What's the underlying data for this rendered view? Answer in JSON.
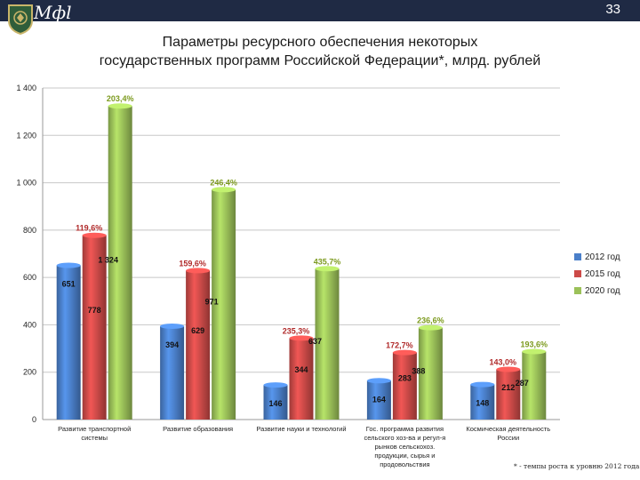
{
  "header": {
    "brand": "Мфl",
    "slide_number": "33",
    "accent": "#1f2a44"
  },
  "title_lines": [
    "Параметры ресурсного обеспечения некоторых",
    "государственных программ Российской Федерации*, млрд. рублей"
  ],
  "footnote": "* - темпы роста к уровню 2012 года",
  "chart_data": {
    "type": "bar",
    "title": "Параметры ресурсного обеспечения некоторых государственных программ Российской Федерации*, млрд. рублей",
    "ylim": [
      0,
      1400
    ],
    "y_ticks": [
      0,
      200,
      400,
      600,
      800,
      1000,
      1200,
      1400
    ],
    "y_tick_labels": [
      "0",
      "200",
      "400",
      "600",
      "800",
      "1 000",
      "1 200",
      "1 400"
    ],
    "grid": true,
    "legend_position": "right",
    "categories": [
      [
        "Развитие транспортной",
        "системы"
      ],
      [
        "Развитие образования"
      ],
      [
        "Развитие науки и технологий"
      ],
      [
        "Гос. программа развития",
        "сельского хоз-ва и регул-я",
        "рынков сельскохоз.",
        "продукции, сырья и",
        "продовольствия"
      ],
      [
        "Космическая деятельность",
        "России"
      ]
    ],
    "series": [
      {
        "name": "2012 год",
        "color": "#4a7fc9",
        "values": [
          651,
          394,
          146,
          164,
          148
        ],
        "labels": [
          "651",
          "394",
          "146",
          "164",
          "148"
        ]
      },
      {
        "name": "2015 год",
        "color": "#cc4a48",
        "values": [
          778,
          629,
          344,
          283,
          212
        ],
        "labels": [
          "778",
          "629",
          "344",
          "283",
          "212"
        ],
        "growth": [
          "119,6%",
          "159,6%",
          "235,3%",
          "172,7%",
          "143,0%"
        ],
        "growth_color": "#b02a2a"
      },
      {
        "name": "2020 год",
        "color": "#9bc159",
        "values": [
          1324,
          971,
          637,
          388,
          287
        ],
        "labels": [
          "1 324",
          "971",
          "637",
          "388",
          "287"
        ],
        "growth": [
          "203,4%",
          "246,4%",
          "435,7%",
          "236,6%",
          "193,6%"
        ],
        "growth_color": "#7c9a1e"
      }
    ]
  }
}
